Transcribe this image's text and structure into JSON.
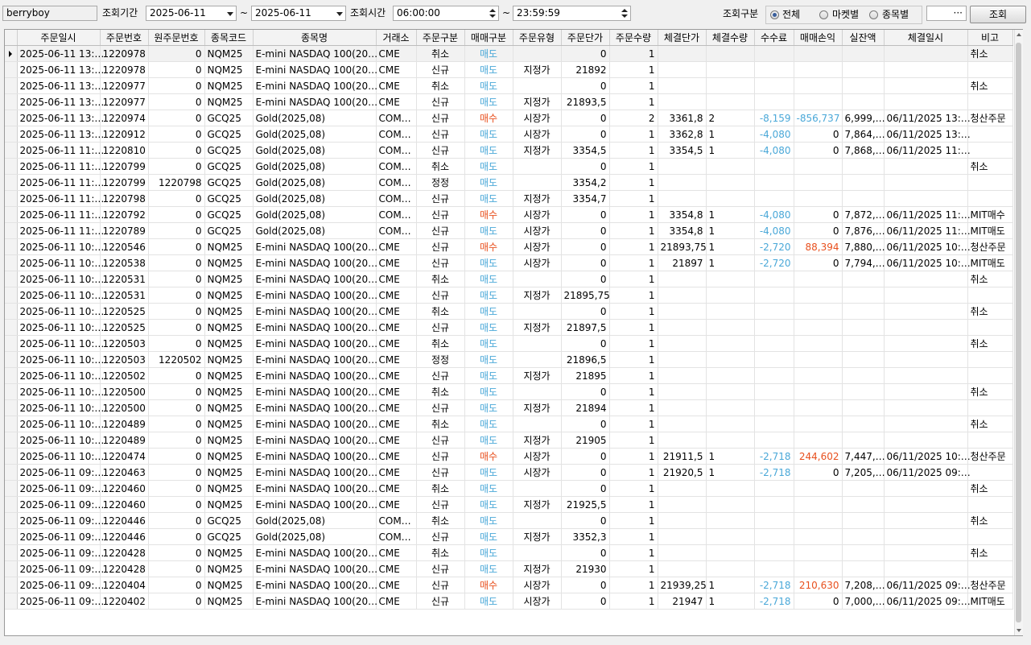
{
  "toolbar": {
    "account": "berryboy",
    "period_label": "조회기간",
    "date_from": "2025-06-11",
    "tilde": "~",
    "date_to": "2025-06-11",
    "time_label": "조회시간",
    "time_from": "06:00:00",
    "time_to": "23:59:59",
    "filter_label": "조회구분",
    "radio_all": "전체",
    "radio_market": "마켓별",
    "radio_symbol": "종목별",
    "more": "···",
    "query_button": "조회"
  },
  "columns": [
    "주문일시",
    "주문번호",
    "원주문번호",
    "종목코드",
    "종목명",
    "거래소",
    "주문구분",
    "매매구분",
    "주문유형",
    "주문단가",
    "주문수량",
    "체결단가",
    "체결수량",
    "수수료",
    "매매손익",
    "실잔액",
    "체결일시",
    "비고"
  ],
  "rows": [
    [
      "2025-06-11 13:…",
      "1220978",
      "0",
      "NQM25",
      "E-mini NASDAQ 100(20…",
      "CME",
      "취소",
      "매도",
      "",
      "0",
      "1",
      "",
      "",
      "",
      "",
      "",
      "",
      "취소"
    ],
    [
      "2025-06-11 13:…",
      "1220978",
      "0",
      "NQM25",
      "E-mini NASDAQ 100(20…",
      "CME",
      "신규",
      "매도",
      "지정가",
      "21892",
      "1",
      "",
      "",
      "",
      "",
      "",
      "",
      ""
    ],
    [
      "2025-06-11 13:…",
      "1220977",
      "0",
      "NQM25",
      "E-mini NASDAQ 100(20…",
      "CME",
      "취소",
      "매도",
      "",
      "0",
      "1",
      "",
      "",
      "",
      "",
      "",
      "",
      "취소"
    ],
    [
      "2025-06-11 13:…",
      "1220977",
      "0",
      "NQM25",
      "E-mini NASDAQ 100(20…",
      "CME",
      "신규",
      "매도",
      "지정가",
      "21893,5",
      "1",
      "",
      "",
      "",
      "",
      "",
      "",
      ""
    ],
    [
      "2025-06-11 13:…",
      "1220974",
      "0",
      "GCQ25",
      "Gold(2025,08)",
      "COM…",
      "신규",
      "매수",
      "시장가",
      "0",
      "2",
      "3361,8",
      "2",
      "-8,159",
      "-856,737",
      "6,999,…",
      "06/11/2025 13:…",
      "청산주문"
    ],
    [
      "2025-06-11 13:…",
      "1220912",
      "0",
      "GCQ25",
      "Gold(2025,08)",
      "COM…",
      "신규",
      "매도",
      "시장가",
      "0",
      "1",
      "3362,8",
      "1",
      "-4,080",
      "0",
      "7,864,…",
      "06/11/2025 13:…",
      ""
    ],
    [
      "2025-06-11 11:…",
      "1220810",
      "0",
      "GCQ25",
      "Gold(2025,08)",
      "COM…",
      "신규",
      "매도",
      "지정가",
      "3354,5",
      "1",
      "3354,5",
      "1",
      "-4,080",
      "0",
      "7,868,…",
      "06/11/2025 11:…",
      ""
    ],
    [
      "2025-06-11 11:…",
      "1220799",
      "0",
      "GCQ25",
      "Gold(2025,08)",
      "COM…",
      "취소",
      "매도",
      "",
      "0",
      "1",
      "",
      "",
      "",
      "",
      "",
      "",
      "취소"
    ],
    [
      "2025-06-11 11:…",
      "1220799",
      "1220798",
      "GCQ25",
      "Gold(2025,08)",
      "COM…",
      "정정",
      "매도",
      "",
      "3354,2",
      "1",
      "",
      "",
      "",
      "",
      "",
      "",
      ""
    ],
    [
      "2025-06-11 11:…",
      "1220798",
      "0",
      "GCQ25",
      "Gold(2025,08)",
      "COM…",
      "신규",
      "매도",
      "지정가",
      "3354,7",
      "1",
      "",
      "",
      "",
      "",
      "",
      "",
      ""
    ],
    [
      "2025-06-11 11:…",
      "1220792",
      "0",
      "GCQ25",
      "Gold(2025,08)",
      "COM…",
      "신규",
      "매수",
      "시장가",
      "0",
      "1",
      "3354,8",
      "1",
      "-4,080",
      "0",
      "7,872,…",
      "06/11/2025 11:…",
      "MIT매수"
    ],
    [
      "2025-06-11 11:…",
      "1220789",
      "0",
      "GCQ25",
      "Gold(2025,08)",
      "COM…",
      "신규",
      "매도",
      "시장가",
      "0",
      "1",
      "3354,8",
      "1",
      "-4,080",
      "0",
      "7,876,…",
      "06/11/2025 11:…",
      "MIT매도"
    ],
    [
      "2025-06-11 10:…",
      "1220546",
      "0",
      "NQM25",
      "E-mini NASDAQ 100(20…",
      "CME",
      "신규",
      "매수",
      "시장가",
      "0",
      "1",
      "21893,75",
      "1",
      "-2,720",
      "88,394",
      "7,880,…",
      "06/11/2025 10:…",
      "청산주문"
    ],
    [
      "2025-06-11 10:…",
      "1220538",
      "0",
      "NQM25",
      "E-mini NASDAQ 100(20…",
      "CME",
      "신규",
      "매도",
      "시장가",
      "0",
      "1",
      "21897",
      "1",
      "-2,720",
      "0",
      "7,794,…",
      "06/11/2025 10:…",
      "MIT매도"
    ],
    [
      "2025-06-11 10:…",
      "1220531",
      "0",
      "NQM25",
      "E-mini NASDAQ 100(20…",
      "CME",
      "취소",
      "매도",
      "",
      "0",
      "1",
      "",
      "",
      "",
      "",
      "",
      "",
      "취소"
    ],
    [
      "2025-06-11 10:…",
      "1220531",
      "0",
      "NQM25",
      "E-mini NASDAQ 100(20…",
      "CME",
      "신규",
      "매도",
      "지정가",
      "21895,75",
      "1",
      "",
      "",
      "",
      "",
      "",
      "",
      ""
    ],
    [
      "2025-06-11 10:…",
      "1220525",
      "0",
      "NQM25",
      "E-mini NASDAQ 100(20…",
      "CME",
      "취소",
      "매도",
      "",
      "0",
      "1",
      "",
      "",
      "",
      "",
      "",
      "",
      "취소"
    ],
    [
      "2025-06-11 10:…",
      "1220525",
      "0",
      "NQM25",
      "E-mini NASDAQ 100(20…",
      "CME",
      "신규",
      "매도",
      "지정가",
      "21897,5",
      "1",
      "",
      "",
      "",
      "",
      "",
      "",
      ""
    ],
    [
      "2025-06-11 10:…",
      "1220503",
      "0",
      "NQM25",
      "E-mini NASDAQ 100(20…",
      "CME",
      "취소",
      "매도",
      "",
      "0",
      "1",
      "",
      "",
      "",
      "",
      "",
      "",
      "취소"
    ],
    [
      "2025-06-11 10:…",
      "1220503",
      "1220502",
      "NQM25",
      "E-mini NASDAQ 100(20…",
      "CME",
      "정정",
      "매도",
      "",
      "21896,5",
      "1",
      "",
      "",
      "",
      "",
      "",
      "",
      ""
    ],
    [
      "2025-06-11 10:…",
      "1220502",
      "0",
      "NQM25",
      "E-mini NASDAQ 100(20…",
      "CME",
      "신규",
      "매도",
      "지정가",
      "21895",
      "1",
      "",
      "",
      "",
      "",
      "",
      "",
      ""
    ],
    [
      "2025-06-11 10:…",
      "1220500",
      "0",
      "NQM25",
      "E-mini NASDAQ 100(20…",
      "CME",
      "취소",
      "매도",
      "",
      "0",
      "1",
      "",
      "",
      "",
      "",
      "",
      "",
      "취소"
    ],
    [
      "2025-06-11 10:…",
      "1220500",
      "0",
      "NQM25",
      "E-mini NASDAQ 100(20…",
      "CME",
      "신규",
      "매도",
      "지정가",
      "21894",
      "1",
      "",
      "",
      "",
      "",
      "",
      "",
      ""
    ],
    [
      "2025-06-11 10:…",
      "1220489",
      "0",
      "NQM25",
      "E-mini NASDAQ 100(20…",
      "CME",
      "취소",
      "매도",
      "",
      "0",
      "1",
      "",
      "",
      "",
      "",
      "",
      "",
      "취소"
    ],
    [
      "2025-06-11 10:…",
      "1220489",
      "0",
      "NQM25",
      "E-mini NASDAQ 100(20…",
      "CME",
      "신규",
      "매도",
      "지정가",
      "21905",
      "1",
      "",
      "",
      "",
      "",
      "",
      "",
      ""
    ],
    [
      "2025-06-11 10:…",
      "1220474",
      "0",
      "NQM25",
      "E-mini NASDAQ 100(20…",
      "CME",
      "신규",
      "매수",
      "시장가",
      "0",
      "1",
      "21911,5",
      "1",
      "-2,718",
      "244,602",
      "7,447,…",
      "06/11/2025 10:…",
      "청산주문"
    ],
    [
      "2025-06-11 09:…",
      "1220463",
      "0",
      "NQM25",
      "E-mini NASDAQ 100(20…",
      "CME",
      "신규",
      "매도",
      "시장가",
      "0",
      "1",
      "21920,5",
      "1",
      "-2,718",
      "0",
      "7,205,…",
      "06/11/2025 09:…",
      ""
    ],
    [
      "2025-06-11 09:…",
      "1220460",
      "0",
      "NQM25",
      "E-mini NASDAQ 100(20…",
      "CME",
      "취소",
      "매도",
      "",
      "0",
      "1",
      "",
      "",
      "",
      "",
      "",
      "",
      "취소"
    ],
    [
      "2025-06-11 09:…",
      "1220460",
      "0",
      "NQM25",
      "E-mini NASDAQ 100(20…",
      "CME",
      "신규",
      "매도",
      "지정가",
      "21925,5",
      "1",
      "",
      "",
      "",
      "",
      "",
      "",
      ""
    ],
    [
      "2025-06-11 09:…",
      "1220446",
      "0",
      "GCQ25",
      "Gold(2025,08)",
      "COM…",
      "취소",
      "매도",
      "",
      "0",
      "1",
      "",
      "",
      "",
      "",
      "",
      "",
      "취소"
    ],
    [
      "2025-06-11 09:…",
      "1220446",
      "0",
      "GCQ25",
      "Gold(2025,08)",
      "COM…",
      "신규",
      "매도",
      "지정가",
      "3352,3",
      "1",
      "",
      "",
      "",
      "",
      "",
      "",
      ""
    ],
    [
      "2025-06-11 09:…",
      "1220428",
      "0",
      "NQM25",
      "E-mini NASDAQ 100(20…",
      "CME",
      "취소",
      "매도",
      "",
      "0",
      "1",
      "",
      "",
      "",
      "",
      "",
      "",
      "취소"
    ],
    [
      "2025-06-11 09:…",
      "1220428",
      "0",
      "NQM25",
      "E-mini NASDAQ 100(20…",
      "CME",
      "신규",
      "매도",
      "지정가",
      "21930",
      "1",
      "",
      "",
      "",
      "",
      "",
      "",
      ""
    ],
    [
      "2025-06-11 09:…",
      "1220404",
      "0",
      "NQM25",
      "E-mini NASDAQ 100(20…",
      "CME",
      "신규",
      "매수",
      "시장가",
      "0",
      "1",
      "21939,25",
      "1",
      "-2,718",
      "210,630",
      "7,208,…",
      "06/11/2025 09:…",
      "청산주문"
    ],
    [
      "2025-06-11 09:…",
      "1220402",
      "0",
      "NQM25",
      "E-mini NASDAQ 100(20…",
      "CME",
      "신규",
      "매도",
      "시장가",
      "0",
      "1",
      "21947",
      "1",
      "-2,718",
      "0",
      "7,000,…",
      "06/11/2025 09:…",
      "MIT매도"
    ]
  ],
  "colors": {
    "buy": "#e8501e",
    "sell": "#4aa8d8",
    "commission": "#4aa8d8",
    "profit": "#e8501e"
  }
}
